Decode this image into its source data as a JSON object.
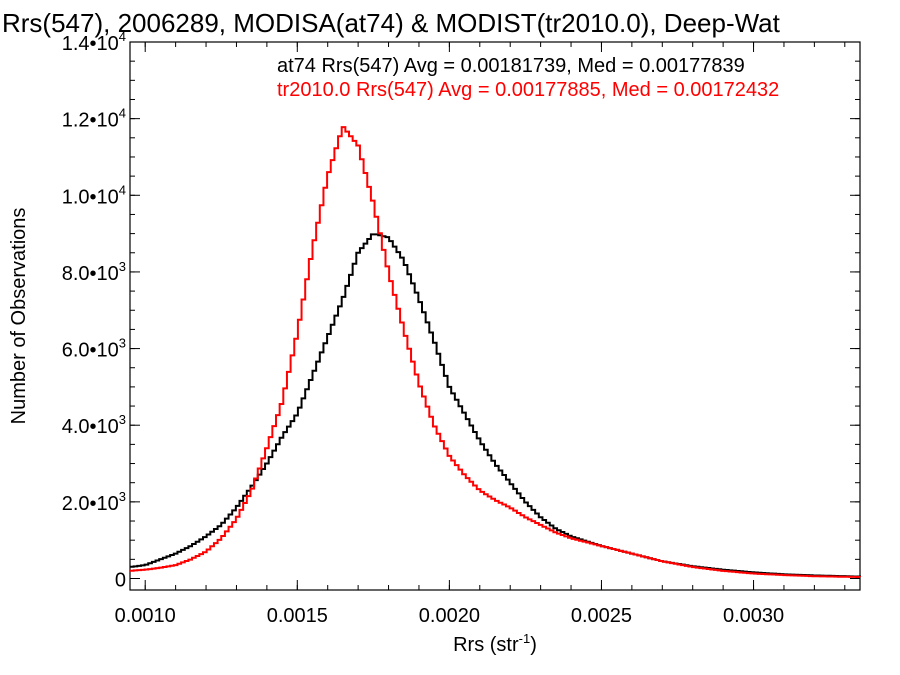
{
  "chart_data": {
    "type": "line",
    "step": true,
    "title": "Rrs(547), 2006289, MODISA(at74) & MODIST(tr2010.0), Deep-Wat",
    "xlabel_main": "Rrs (str",
    "xlabel_sup": "-1",
    "xlabel_end": ")",
    "ylabel": "Number of Observations",
    "xlim": [
      0.00095,
      0.00335
    ],
    "ylim": [
      -300,
      14000
    ],
    "x_ticks": [
      {
        "value": 0.001,
        "label": "0.0010"
      },
      {
        "value": 0.0015,
        "label": "0.0015"
      },
      {
        "value": 0.002,
        "label": "0.0020"
      },
      {
        "value": 0.0025,
        "label": "0.0025"
      },
      {
        "value": 0.003,
        "label": "0.0030"
      }
    ],
    "y_ticks": [
      {
        "value": 0,
        "label": "0",
        "sup": ""
      },
      {
        "value": 2000,
        "label": "2.0•10",
        "sup": "3"
      },
      {
        "value": 4000,
        "label": "4.0•10",
        "sup": "3"
      },
      {
        "value": 6000,
        "label": "6.0•10",
        "sup": "3"
      },
      {
        "value": 8000,
        "label": "8.0•10",
        "sup": "3"
      },
      {
        "value": 10000,
        "label": "1.0•10",
        "sup": "4"
      },
      {
        "value": 12000,
        "label": "1.2•10",
        "sup": "4"
      },
      {
        "value": 14000,
        "label": "1.4•10",
        "sup": "4"
      }
    ],
    "series": [
      {
        "name": "at74",
        "legend": "at74 Rrs(547) Avg = 0.00181739, Med = 0.00177839",
        "color": "#000000",
        "x": [
          0.00095,
          0.001,
          0.00105,
          0.0011,
          0.00115,
          0.0012,
          0.00125,
          0.0013,
          0.00135,
          0.0014,
          0.00145,
          0.0015,
          0.00155,
          0.0016,
          0.00165,
          0.0017,
          0.00175,
          0.0018,
          0.00185,
          0.0019,
          0.00195,
          0.002,
          0.00205,
          0.0021,
          0.00215,
          0.0022,
          0.00225,
          0.0023,
          0.00235,
          0.0024,
          0.0025,
          0.0026,
          0.0027,
          0.0028,
          0.0029,
          0.003,
          0.0031,
          0.0032,
          0.0033,
          0.00335
        ],
        "y": [
          300,
          350,
          500,
          650,
          850,
          1100,
          1400,
          1850,
          2400,
          3000,
          3700,
          4300,
          5300,
          6300,
          7300,
          8500,
          9000,
          8900,
          8300,
          7300,
          6200,
          5000,
          4300,
          3600,
          3000,
          2500,
          2000,
          1600,
          1300,
          1100,
          850,
          650,
          450,
          320,
          230,
          160,
          110,
          80,
          60,
          50
        ]
      },
      {
        "name": "tr2010.0",
        "legend": "tr2010.0 Rrs(547) Avg = 0.00177885, Med = 0.00172432",
        "color": "#ff0000",
        "x": [
          0.00095,
          0.001,
          0.00105,
          0.0011,
          0.00115,
          0.0012,
          0.00125,
          0.0013,
          0.00135,
          0.0014,
          0.00145,
          0.0015,
          0.00155,
          0.0016,
          0.00165,
          0.0017,
          0.00175,
          0.0018,
          0.00185,
          0.0019,
          0.00195,
          0.002,
          0.00205,
          0.0021,
          0.00215,
          0.0022,
          0.00225,
          0.0023,
          0.00235,
          0.0024,
          0.0025,
          0.0026,
          0.0027,
          0.0028,
          0.0029,
          0.003,
          0.0031,
          0.0032,
          0.0033,
          0.00335
        ],
        "y": [
          200,
          230,
          280,
          350,
          500,
          700,
          1050,
          1550,
          2300,
          3400,
          4600,
          6400,
          8600,
          10500,
          11800,
          11300,
          9800,
          8000,
          6500,
          5100,
          4000,
          3200,
          2700,
          2300,
          2050,
          1850,
          1600,
          1400,
          1200,
          1050,
          850,
          650,
          450,
          300,
          200,
          130,
          90,
          60,
          45,
          40
        ]
      }
    ]
  }
}
